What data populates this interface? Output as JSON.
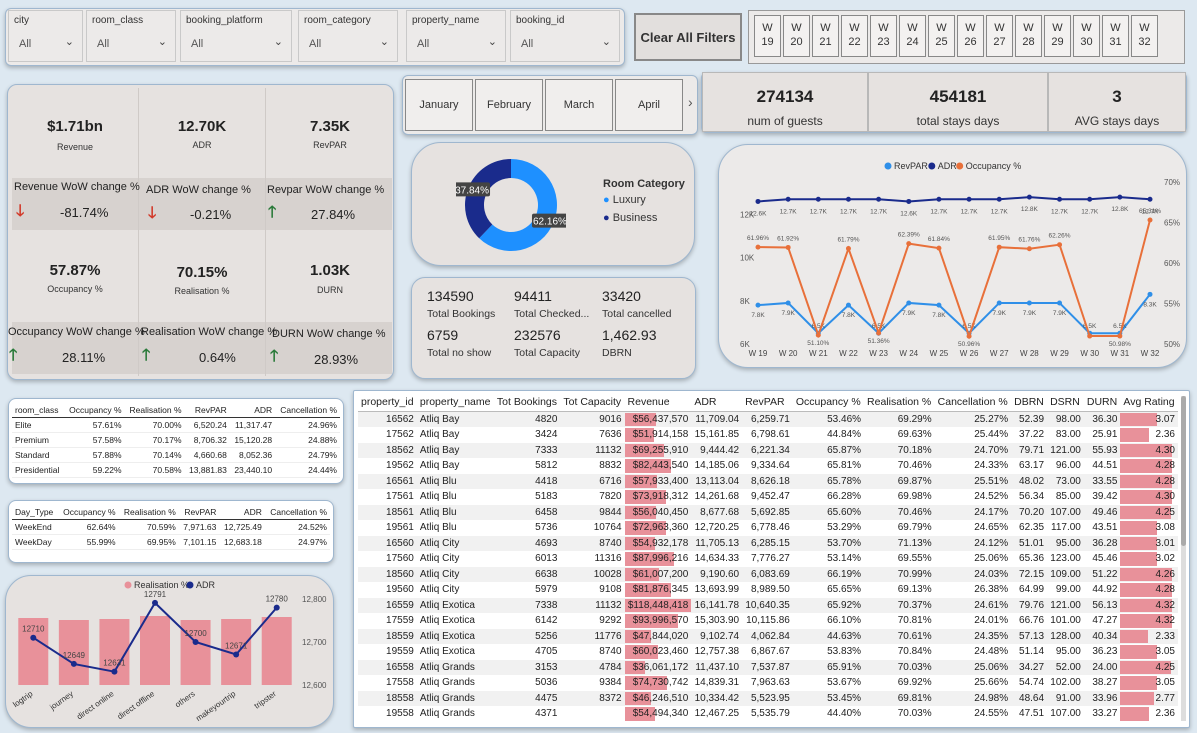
{
  "slicers": [
    {
      "label": "city",
      "value": "All"
    },
    {
      "label": "room_class",
      "value": "All"
    },
    {
      "label": "booking_platform",
      "value": "All"
    },
    {
      "label": "room_category",
      "value": "All"
    },
    {
      "label": "property_name",
      "value": "All"
    },
    {
      "label": "booking_id",
      "value": "All"
    }
  ],
  "clear_filters": "Clear All Filters",
  "weeks": [
    "W 19",
    "W 20",
    "W 21",
    "W 22",
    "W 23",
    "W 24",
    "W 25",
    "W 26",
    "W 27",
    "W 28",
    "W 29",
    "W 30",
    "W 31",
    "W 32"
  ],
  "kpis": {
    "revenue": {
      "value": "$1.71bn",
      "label": "Revenue"
    },
    "adr": {
      "value": "12.70K",
      "label": "ADR"
    },
    "revpar": {
      "value": "7.35K",
      "label": "RevPAR"
    },
    "occupancy": {
      "value": "57.87%",
      "label": "Occupancy %"
    },
    "realisation": {
      "value": "70.15%",
      "label": "Realisation %"
    },
    "durn": {
      "value": "1.03K",
      "label": "DURN"
    }
  },
  "wow": {
    "revenue": {
      "label": "Revenue WoW change %",
      "value": "-81.74%",
      "dir": "down"
    },
    "adr": {
      "label": "ADR WoW change %",
      "value": "-0.21%",
      "dir": "down"
    },
    "revpar": {
      "label": "Revpar WoW change %",
      "value": "27.84%",
      "dir": "up"
    },
    "occupancy": {
      "label": "Occupancy WoW change %",
      "value": "28.11%",
      "dir": "up"
    },
    "realisation": {
      "label": "Realisation WoW change %",
      "value": "0.64%",
      "dir": "up"
    },
    "durn": {
      "label": "DURN WoW change %",
      "value": "28.93%",
      "dir": "up"
    }
  },
  "months": [
    "January",
    "February",
    "March",
    "April"
  ],
  "month_next": "›",
  "stats": [
    {
      "value": "274134",
      "label": "num of guests"
    },
    {
      "value": "454181",
      "label": "total stays days"
    },
    {
      "value": "3",
      "label": "AVG stays days"
    }
  ],
  "donut": {
    "title": "Room Category",
    "slices": [
      {
        "name": "Luxury",
        "value": 62.16,
        "label": "62.16%",
        "color": "#1e90ff"
      },
      {
        "name": "Business",
        "value": 37.84,
        "label": "37.84%",
        "color": "#1a2b8c"
      }
    ]
  },
  "totals": [
    {
      "value": "134590",
      "label": "Total Bookings"
    },
    {
      "value": "94411",
      "label": "Total Checked..."
    },
    {
      "value": "33420",
      "label": "Total cancelled"
    },
    {
      "value": "6759",
      "label": "Total no show"
    },
    {
      "value": "232576",
      "label": "Total Capacity"
    },
    {
      "value": "1,462.93",
      "label": "DBRN"
    }
  ],
  "chart_data": [
    {
      "type": "line",
      "categories": [
        "W 19",
        "W 20",
        "W 21",
        "W 22",
        "W 23",
        "W 24",
        "W 25",
        "W 26",
        "W 27",
        "W 28",
        "W 29",
        "W 30",
        "W 31",
        "W 32"
      ],
      "series": [
        {
          "name": "RevPAR",
          "color": "#2f8fe8",
          "values": [
            7.8,
            7.9,
            6.5,
            7.8,
            6.5,
            7.9,
            7.8,
            6.5,
            7.9,
            7.9,
            7.9,
            6.5,
            6.5,
            8.3
          ],
          "labels": [
            "7.8K",
            "7.9K",
            "6.5K",
            "7.8K",
            "6.5K",
            "7.9K",
            "7.8K",
            "6.5K",
            "7.9K",
            "7.9K",
            "7.9K",
            "6.5K",
            "6.5K",
            "8.3K"
          ]
        },
        {
          "name": "ADR",
          "color": "#1a2b8c",
          "values": [
            12.6,
            12.7,
            12.7,
            12.7,
            12.7,
            12.6,
            12.7,
            12.7,
            12.7,
            12.8,
            12.7,
            12.7,
            12.8,
            12.7
          ],
          "labels": [
            "12.6K",
            "12.7K",
            "12.7K",
            "12.7K",
            "12.7K",
            "12.6K",
            "12.7K",
            "12.7K",
            "12.7K",
            "12.8K",
            "12.7K",
            "12.7K",
            "12.8K",
            "12.7K"
          ]
        },
        {
          "name": "Occupancy %",
          "color": "#e8703a",
          "values": [
            61.96,
            61.92,
            51.1,
            61.79,
            51.36,
            62.39,
            61.84,
            50.96,
            61.95,
            61.76,
            62.26,
            50.98,
            50.98,
            65.31
          ],
          "labels": [
            "61.96%",
            "61.92%",
            "51.10%",
            "61.79%",
            "51.36%",
            "62.39%",
            "61.84%",
            "50.96%",
            "61.95%",
            "61.76%",
            "62.26%",
            "",
            "50.98%",
            "65.31%"
          ]
        }
      ],
      "y_left_ticks": [
        "6K",
        "8K",
        "10K",
        "12K"
      ],
      "y_right_ticks": [
        "50%",
        "55%",
        "60%",
        "65%",
        "70%"
      ],
      "ylim_left": [
        6,
        13.5
      ],
      "ylim_right": [
        50,
        70
      ]
    },
    {
      "type": "bar",
      "categories": [
        "logtrip",
        "journey",
        "direct online",
        "direct offline",
        "others",
        "makeyourtrip",
        "tripster"
      ],
      "series": [
        {
          "name": "Realisation %",
          "color": "#e8919a",
          "values": [
            70.2,
            70.0,
            70.1,
            70.4,
            70.0,
            70.1,
            70.3
          ]
        },
        {
          "name": "ADR",
          "color": "#1a2b8c",
          "values": [
            12710,
            12649,
            12631,
            12791,
            12700,
            12671,
            12780
          ],
          "labels": [
            "12710",
            "12649",
            "12631",
            "12791",
            "12700",
            "12671",
            "12780"
          ]
        }
      ],
      "y_right_ticks": [
        "12,600",
        "12,700",
        "12,800"
      ],
      "ylim_right": [
        12600,
        12800
      ]
    }
  ],
  "room_class_table": {
    "headers": [
      "room_class",
      "Occupancy %",
      "Realisation %",
      "RevPAR",
      "ADR",
      "Cancellation %"
    ],
    "rows": [
      [
        "Elite",
        "57.61%",
        "70.00%",
        "6,520.24",
        "11,317.47",
        "24.96%"
      ],
      [
        "Premium",
        "57.58%",
        "70.17%",
        "8,706.32",
        "15,120.28",
        "24.88%"
      ],
      [
        "Standard",
        "57.88%",
        "70.14%",
        "4,660.68",
        "8,052.36",
        "24.79%"
      ],
      [
        "Presidential",
        "59.22%",
        "70.58%",
        "13,881.83",
        "23,440.10",
        "24.44%"
      ]
    ]
  },
  "day_type_table": {
    "headers": [
      "Day_Type",
      "Occupancy %",
      "Realisation %",
      "RevPAR",
      "ADR",
      "Cancellation %"
    ],
    "rows": [
      [
        "WeekEnd",
        "62.64%",
        "70.59%",
        "7,971.63",
        "12,725.49",
        "24.52%"
      ],
      [
        "WeekDay",
        "55.99%",
        "69.95%",
        "7,101.15",
        "12,683.18",
        "24.97%"
      ]
    ]
  },
  "property_table": {
    "headers": [
      "property_id",
      "property_name",
      "Tot Bookings",
      "Tot Capacity",
      "Revenue",
      "ADR",
      "RevPAR",
      "Occupancy %",
      "Realisation %",
      "Cancellation %",
      "DBRN",
      "DSRN",
      "DURN",
      "Avg Rating"
    ],
    "rows": [
      [
        "16562",
        "Atliq Bay",
        "4820",
        "9016",
        "$56,437,570",
        "11,709.04",
        "6,259.71",
        "53.46%",
        "69.29%",
        "25.27%",
        "52.39",
        "98.00",
        "36.30",
        "3.07"
      ],
      [
        "17562",
        "Atliq Bay",
        "3424",
        "7636",
        "$51,914,158",
        "15,161.85",
        "6,798.61",
        "44.84%",
        "69.63%",
        "25.44%",
        "37.22",
        "83.00",
        "25.91",
        "2.36"
      ],
      [
        "18562",
        "Atliq Bay",
        "7333",
        "11132",
        "$69,255,910",
        "9,444.42",
        "6,221.34",
        "65.87%",
        "70.18%",
        "24.70%",
        "79.71",
        "121.00",
        "55.93",
        "4.30"
      ],
      [
        "19562",
        "Atliq Bay",
        "5812",
        "8832",
        "$82,443,540",
        "14,185.06",
        "9,334.64",
        "65.81%",
        "70.46%",
        "24.33%",
        "63.17",
        "96.00",
        "44.51",
        "4.28"
      ],
      [
        "16561",
        "Atliq Blu",
        "4418",
        "6716",
        "$57,933,400",
        "13,113.04",
        "8,626.18",
        "65.78%",
        "69.87%",
        "25.51%",
        "48.02",
        "73.00",
        "33.55",
        "4.28"
      ],
      [
        "17561",
        "Atliq Blu",
        "5183",
        "7820",
        "$73,918,312",
        "14,261.68",
        "9,452.47",
        "66.28%",
        "69.98%",
        "24.52%",
        "56.34",
        "85.00",
        "39.42",
        "4.30"
      ],
      [
        "18561",
        "Atliq Blu",
        "6458",
        "9844",
        "$56,040,450",
        "8,677.68",
        "5,692.85",
        "65.60%",
        "70.46%",
        "24.17%",
        "70.20",
        "107.00",
        "49.46",
        "4.25"
      ],
      [
        "19561",
        "Atliq Blu",
        "5736",
        "10764",
        "$72,963,360",
        "12,720.25",
        "6,778.46",
        "53.29%",
        "69.79%",
        "24.65%",
        "62.35",
        "117.00",
        "43.51",
        "3.08"
      ],
      [
        "16560",
        "Atliq City",
        "4693",
        "8740",
        "$54,932,178",
        "11,705.13",
        "6,285.15",
        "53.70%",
        "71.13%",
        "24.12%",
        "51.01",
        "95.00",
        "36.28",
        "3.01"
      ],
      [
        "17560",
        "Atliq City",
        "6013",
        "11316",
        "$87,996,216",
        "14,634.33",
        "7,776.27",
        "53.14%",
        "69.55%",
        "25.06%",
        "65.36",
        "123.00",
        "45.46",
        "3.02"
      ],
      [
        "18560",
        "Atliq City",
        "6638",
        "10028",
        "$61,007,200",
        "9,190.60",
        "6,083.69",
        "66.19%",
        "70.99%",
        "24.03%",
        "72.15",
        "109.00",
        "51.22",
        "4.26"
      ],
      [
        "19560",
        "Atliq City",
        "5979",
        "9108",
        "$81,876,345",
        "13,693.99",
        "8,989.50",
        "65.65%",
        "69.13%",
        "26.38%",
        "64.99",
        "99.00",
        "44.92",
        "4.28"
      ],
      [
        "16559",
        "Atliq Exotica",
        "7338",
        "11132",
        "$118,448,418",
        "16,141.78",
        "10,640.35",
        "65.92%",
        "70.37%",
        "24.61%",
        "79.76",
        "121.00",
        "56.13",
        "4.32"
      ],
      [
        "17559",
        "Atliq Exotica",
        "6142",
        "9292",
        "$93,996,570",
        "15,303.90",
        "10,115.86",
        "66.10%",
        "70.81%",
        "24.01%",
        "66.76",
        "101.00",
        "47.27",
        "4.32"
      ],
      [
        "18559",
        "Atliq Exotica",
        "5256",
        "11776",
        "$47,844,020",
        "9,102.74",
        "4,062.84",
        "44.63%",
        "70.61%",
        "24.35%",
        "57.13",
        "128.00",
        "40.34",
        "2.33"
      ],
      [
        "19559",
        "Atliq Exotica",
        "4705",
        "8740",
        "$60,023,460",
        "12,757.38",
        "6,867.67",
        "53.83%",
        "70.84%",
        "24.48%",
        "51.14",
        "95.00",
        "36.23",
        "3.05"
      ],
      [
        "16558",
        "Atliq Grands",
        "3153",
        "4784",
        "$36,061,172",
        "11,437.10",
        "7,537.87",
        "65.91%",
        "70.03%",
        "25.06%",
        "34.27",
        "52.00",
        "24.00",
        "4.25"
      ],
      [
        "17558",
        "Atliq Grands",
        "5036",
        "9384",
        "$74,730,742",
        "14,839.31",
        "7,963.63",
        "53.67%",
        "69.92%",
        "25.66%",
        "54.74",
        "102.00",
        "38.27",
        "3.05"
      ],
      [
        "18558",
        "Atliq Grands",
        "4475",
        "8372",
        "$46,246,510",
        "10,334.42",
        "5,523.95",
        "53.45%",
        "69.81%",
        "24.98%",
        "48.64",
        "91.00",
        "33.96",
        "2.77"
      ],
      [
        "19558",
        "Atliq Grands",
        "4371",
        "",
        "$54,494,340",
        "12,467.25",
        "5,535.79",
        "44.40%",
        "70.03%",
        "24.55%",
        "47.51",
        "107.00",
        "33.27",
        "2.36"
      ]
    ],
    "revenue_values": [
      56437570,
      51914158,
      69255910,
      82443540,
      57933400,
      73918312,
      56040450,
      72963360,
      54932178,
      87996216,
      61007200,
      81876345,
      118448418,
      93996570,
      47844020,
      60023460,
      36061172,
      74730742,
      46246510,
      54494340
    ],
    "rating_values": [
      3.07,
      2.36,
      4.3,
      4.28,
      4.28,
      4.3,
      4.25,
      3.08,
      3.01,
      3.02,
      4.26,
      4.28,
      4.32,
      4.32,
      2.33,
      3.05,
      4.25,
      3.05,
      2.77,
      2.36
    ]
  }
}
